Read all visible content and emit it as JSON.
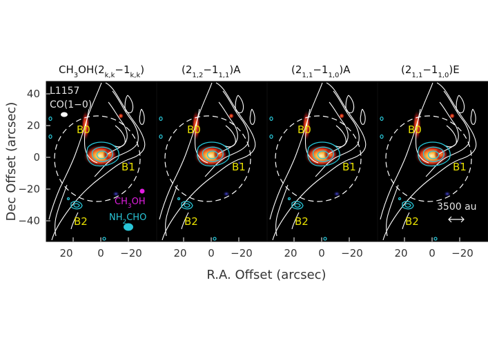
{
  "figure": {
    "x_axis_title": "R.A. Offset (arcsec)",
    "y_axis_title": "Dec Offset (arcsec)",
    "x_ticks": [
      "20",
      "0",
      "−20"
    ],
    "y_ticks": [
      "40",
      "20",
      "0",
      "−20",
      "−40"
    ],
    "panels": [
      {
        "title_main": "CH",
        "title_sub": "3",
        "title_rest": "OH(2",
        "title_sub2": "k,k",
        "title_mid": "−1",
        "title_sub3": "k,k",
        "title_end": ")"
      },
      {
        "title_main": "(2",
        "title_sub": "1,2",
        "title_rest": "−1",
        "title_sub2": "1,1",
        "title_mid": ")A",
        "title_sub3": "",
        "title_end": ""
      },
      {
        "title_main": "(2",
        "title_sub": "1,1",
        "title_rest": "−1",
        "title_sub2": "1,0",
        "title_mid": ")A",
        "title_sub3": "",
        "title_end": ""
      },
      {
        "title_main": "(2",
        "title_sub": "1,1",
        "title_rest": "−1",
        "title_sub2": "1,0",
        "title_mid": ")E",
        "title_sub3": "",
        "title_end": ""
      }
    ],
    "source_name": "L1157",
    "co_label": "CO(1−0)",
    "knots": [
      "B0",
      "B1",
      "B2"
    ],
    "legend_ch3oh": {
      "main": "CH",
      "sub": "3",
      "end": "OH"
    },
    "legend_nh2cho": {
      "main": "NH",
      "sub": "2",
      "end": "CHO"
    },
    "scale_bar_label": "3500 au",
    "colors": {
      "background": "#000000",
      "co_contour": "#ffffff",
      "nh2cho_contour": "#29c6d8",
      "ch3oh_beam": "#e01ee0",
      "knot_label": "#e8e000",
      "emission_hot": "#ff6a1a",
      "emission_cool": "#2a2ab8"
    }
  }
}
